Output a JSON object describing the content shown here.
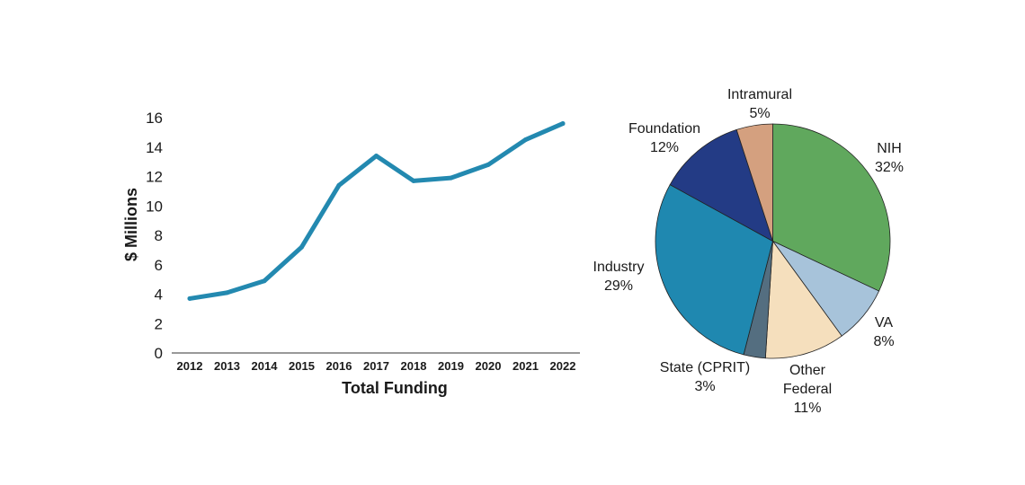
{
  "chart_data": [
    {
      "type": "line",
      "title": "",
      "xlabel": "Total Funding",
      "ylabel": "$ Millions",
      "ylim": [
        0,
        16
      ],
      "yticks": [
        0,
        2,
        4,
        6,
        8,
        10,
        12,
        14,
        16
      ],
      "categories": [
        "2012",
        "2013",
        "2014",
        "2015",
        "2016",
        "2017",
        "2018",
        "2019",
        "2020",
        "2021",
        "2022"
      ],
      "values": [
        3.7,
        4.1,
        4.9,
        7.2,
        11.4,
        13.4,
        11.7,
        11.9,
        12.8,
        14.5,
        15.6
      ],
      "color": "#2389b0"
    },
    {
      "type": "pie",
      "slices": [
        {
          "name": "NIH",
          "value": 32,
          "label": "32%",
          "color": "#60a85d"
        },
        {
          "name": "VA",
          "value": 8,
          "label": "8%",
          "color": "#a7c3da"
        },
        {
          "name": "Other\nFederal",
          "value": 11,
          "label": "11%",
          "color": "#f5dfbd"
        },
        {
          "name": "State (CPRIT)",
          "value": 3,
          "label": "3%",
          "color": "#546e80"
        },
        {
          "name": "Industry",
          "value": 29,
          "label": "29%",
          "color": "#1f88b0"
        },
        {
          "name": "Foundation",
          "value": 12,
          "label": "12%",
          "color": "#233b85"
        },
        {
          "name": "Intramural",
          "value": 5,
          "label": "5%",
          "color": "#d4a07f"
        }
      ]
    }
  ]
}
